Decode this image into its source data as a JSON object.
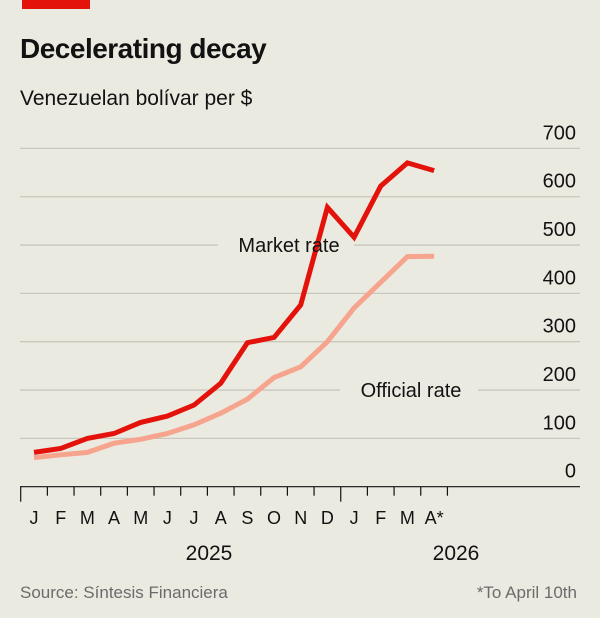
{
  "title": "Decelerating decay",
  "subtitle": "Venezuelan bolívar per $",
  "source": "Source: Síntesis Financiera",
  "footnote": "*To April 10th",
  "colors": {
    "background": "#EBEAE0",
    "accent_bar": "#E3120B",
    "market": "#E3120B",
    "official": "#F6A48E",
    "grid": "#C9C8BE"
  },
  "chart_data": {
    "type": "line",
    "title": "Decelerating decay",
    "subtitle": "Venezuelan bolívar per $",
    "categories": [
      "J",
      "F",
      "M",
      "A",
      "M",
      "J",
      "J",
      "A",
      "S",
      "O",
      "N",
      "D",
      "J",
      "F",
      "M",
      "A*"
    ],
    "years": [
      {
        "label": "2025",
        "start": 0,
        "end": 11
      },
      {
        "label": "2026",
        "start": 12,
        "end": 15
      }
    ],
    "series": [
      {
        "name": "Market rate",
        "color": "#E3120B",
        "values": [
          71,
          79,
          100,
          110,
          133,
          146,
          169,
          214,
          298,
          309,
          376,
          578,
          516,
          622,
          670,
          654
        ]
      },
      {
        "name": "Official rate",
        "color": "#F6A48E",
        "values": [
          60,
          66,
          71,
          90,
          98,
          110,
          128,
          152,
          181,
          226,
          248,
          300,
          370,
          423,
          476,
          477
        ]
      }
    ],
    "yticks": [
      0,
      100,
      200,
      300,
      400,
      500,
      600,
      700
    ],
    "ylim": [
      0,
      700
    ],
    "grid": true,
    "yaxis_side": "right",
    "legend": "inline labels"
  }
}
